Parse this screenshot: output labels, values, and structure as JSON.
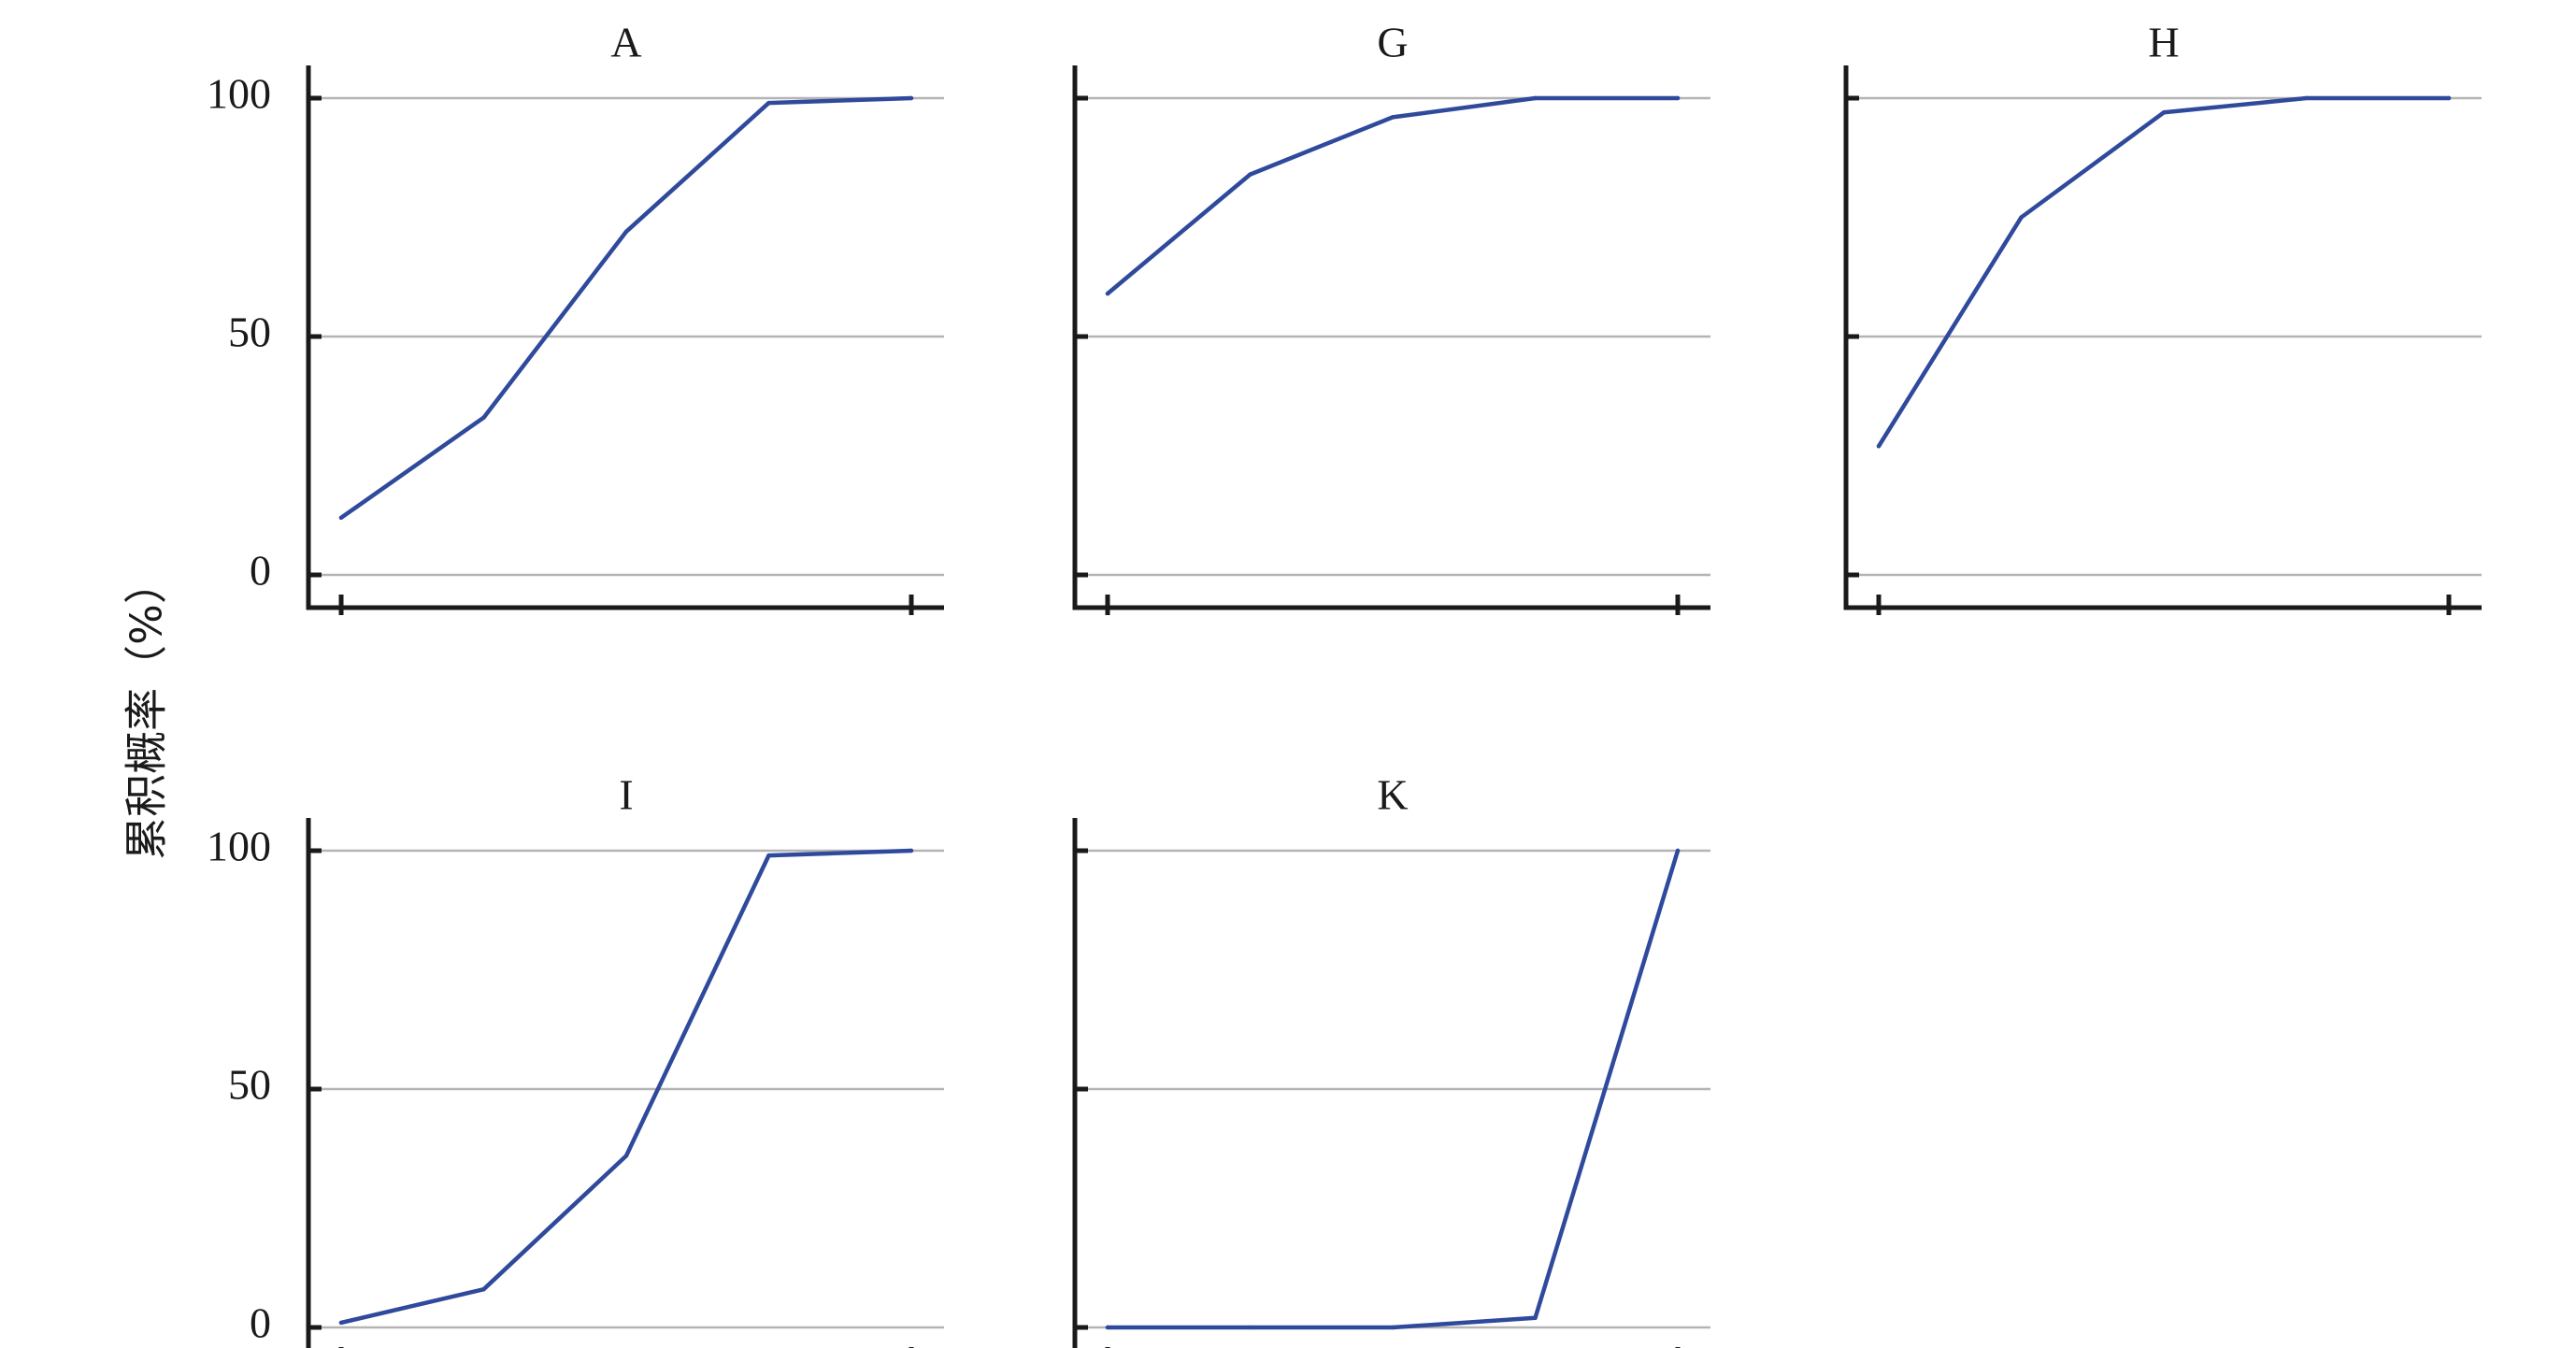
{
  "chart_data": [
    {
      "type": "line",
      "title": "A",
      "x": [
        1,
        2,
        3,
        4,
        5
      ],
      "series": [
        {
          "values": [
            12,
            33,
            72,
            99,
            100
          ]
        }
      ],
      "ylim": [
        0,
        100
      ],
      "yticks": [
        "0",
        "50",
        "100"
      ],
      "grid": true
    },
    {
      "type": "line",
      "title": "G",
      "x": [
        1,
        2,
        3,
        4,
        5
      ],
      "series": [
        {
          "values": [
            59,
            84,
            96,
            100,
            100
          ]
        }
      ],
      "ylim": [
        0,
        100
      ],
      "yticks": [
        "",
        "",
        ""
      ],
      "grid": true
    },
    {
      "type": "line",
      "title": "H",
      "x": [
        1,
        2,
        3,
        4,
        5
      ],
      "series": [
        {
          "values": [
            27,
            75,
            97,
            100,
            100
          ]
        }
      ],
      "ylim": [
        0,
        100
      ],
      "yticks": [
        "",
        "",
        ""
      ],
      "grid": true
    },
    {
      "type": "line",
      "title": "I",
      "x": [
        1,
        2,
        3,
        4,
        5
      ],
      "series": [
        {
          "values": [
            1,
            8,
            36,
            99,
            100
          ]
        }
      ],
      "ylim": [
        0,
        100
      ],
      "yticks": [
        "0",
        "50",
        "100"
      ],
      "grid": true
    },
    {
      "type": "line",
      "title": "K",
      "x": [
        1,
        2,
        3,
        4,
        5
      ],
      "series": [
        {
          "values": [
            0,
            0,
            0,
            2,
            100
          ]
        }
      ],
      "ylim": [
        0,
        100
      ],
      "yticks": [
        "",
        "",
        ""
      ],
      "grid": true
    }
  ],
  "ylabel": "累积概率（%）",
  "colors": {
    "series": "#2f4a9c",
    "grid": "#b4b4b4",
    "axis": "#1a1a1a"
  }
}
